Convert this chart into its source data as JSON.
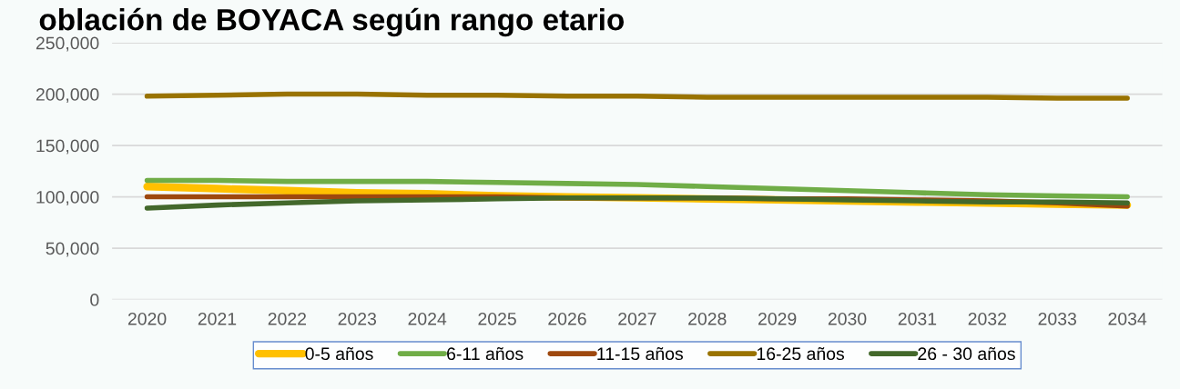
{
  "chart_data": {
    "type": "line",
    "title": "oblación de BOYACA según rango etario",
    "x": [
      2020,
      2021,
      2022,
      2023,
      2024,
      2025,
      2026,
      2027,
      2028,
      2029,
      2030,
      2031,
      2032,
      2033,
      2034
    ],
    "series": [
      {
        "name": "0-5 años",
        "color": "#ffc000",
        "values": [
          110000,
          108000,
          106000,
          104000,
          103000,
          101000,
          100000,
          99000,
          98000,
          97000,
          96000,
          95000,
          94000,
          93000,
          92000
        ]
      },
      {
        "name": "6-11 años",
        "color": "#70ad47",
        "values": [
          116000,
          116000,
          115000,
          115000,
          115000,
          114000,
          113000,
          112000,
          110000,
          108000,
          106000,
          104000,
          102000,
          101000,
          100000
        ]
      },
      {
        "name": "11-15 años",
        "color": "#9e480e",
        "values": [
          100000,
          100000,
          100000,
          100000,
          100000,
          100000,
          99000,
          99000,
          99000,
          98000,
          98000,
          97000,
          96000,
          94000,
          91000
        ]
      },
      {
        "name": "16-25 años",
        "color": "#997300",
        "values": [
          198000,
          199000,
          200000,
          200000,
          199000,
          199000,
          198000,
          198000,
          197000,
          197000,
          197000,
          197000,
          197000,
          196000,
          196000
        ]
      },
      {
        "name": "26 - 30 años",
        "color": "#43682b",
        "values": [
          89000,
          92000,
          94000,
          96000,
          97000,
          98000,
          99000,
          99000,
          99000,
          98000,
          97000,
          96000,
          95000,
          95000,
          94000
        ]
      }
    ],
    "xticks": [
      2020,
      2021,
      2022,
      2023,
      2024,
      2025,
      2026,
      2027,
      2028,
      2029,
      2030,
      2031,
      2032,
      2033,
      2034
    ],
    "xlim": [
      2019.5,
      2034.5
    ],
    "ylim": [
      0,
      250000
    ],
    "yticks": [
      {
        "value": 0,
        "label": "0"
      },
      {
        "value": 50000,
        "label": "50,000"
      },
      {
        "value": 100000,
        "label": "100,000"
      },
      {
        "value": 150000,
        "label": "150,000"
      },
      {
        "value": 200000,
        "label": "200,000"
      },
      {
        "value": 250000,
        "label": "250,000"
      }
    ],
    "grid": "y",
    "legend": "bottom",
    "marker": "none",
    "line_style": "solid"
  }
}
